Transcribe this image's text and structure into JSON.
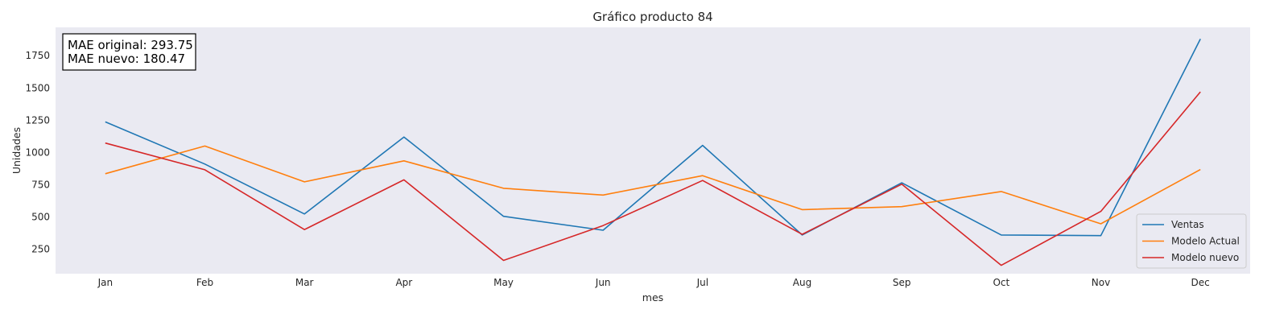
{
  "chart_data": {
    "type": "line",
    "title": "Gráfico producto 84",
    "xlabel": "mes",
    "ylabel": "Unidades",
    "categories": [
      "Jan",
      "Feb",
      "Mar",
      "Apr",
      "May",
      "Jun",
      "Jul",
      "Aug",
      "Sep",
      "Oct",
      "Nov",
      "Dec"
    ],
    "y_ticks": [
      250,
      500,
      750,
      1000,
      1250,
      1500,
      1750
    ],
    "ylim": [
      60,
      1970
    ],
    "grid": false,
    "legend_position": "lower right",
    "annotation": {
      "lines": [
        "MAE original: 293.75",
        "MAE nuevo: 180.47"
      ]
    },
    "series": [
      {
        "name": "Ventas",
        "color": "#1f77b4",
        "values": [
          1237,
          910,
          523,
          1120,
          505,
          397,
          1055,
          360,
          765,
          360,
          355,
          1880
        ]
      },
      {
        "name": "Modelo Actual",
        "color": "#ff7f0e",
        "values": [
          835,
          1050,
          772,
          935,
          722,
          670,
          820,
          557,
          580,
          697,
          447,
          868
        ]
      },
      {
        "name": "Modelo nuevo",
        "color": "#d62728",
        "values": [
          1073,
          866,
          402,
          788,
          163,
          433,
          783,
          365,
          754,
          125,
          543,
          1470
        ]
      }
    ]
  }
}
